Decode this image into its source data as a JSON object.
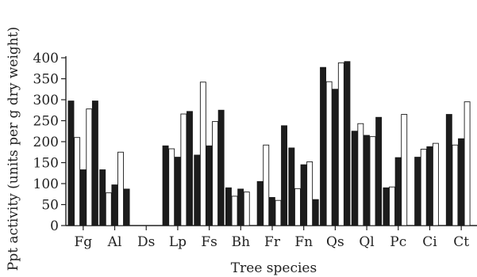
{
  "chart_data": {
    "type": "bar",
    "title": "",
    "xlabel": "Tree species",
    "ylabel": "Ppt activity (units per g dry weight)",
    "ylim": [
      0,
      400
    ],
    "yticks": [
      0,
      50,
      100,
      150,
      200,
      250,
      300,
      350,
      400
    ],
    "grid": false,
    "legend": "none",
    "categories": [
      "Fg",
      "Al",
      "Ds",
      "Lp",
      "Fs",
      "Bh",
      "Fr",
      "Fn",
      "Qs",
      "Ql",
      "Pc",
      "Ci",
      "Ct"
    ],
    "bar_fills": [
      "#1c1c1c",
      "#ffffff"
    ],
    "bars": [
      [
        297,
        210,
        133,
        278,
        297
      ],
      [
        133,
        78,
        97,
        175,
        87
      ],
      [
        0,
        0,
        0,
        0,
        0
      ],
      [
        190,
        183,
        163,
        266,
        272
      ],
      [
        168,
        342,
        190,
        248,
        275
      ],
      [
        90,
        70,
        87,
        80
      ],
      [
        105,
        192,
        67,
        60,
        238
      ],
      [
        185,
        88,
        145,
        152,
        62
      ],
      [
        377,
        343,
        325,
        388,
        391
      ],
      [
        225,
        243,
        215,
        212,
        258
      ],
      [
        90,
        92,
        162,
        265
      ],
      [
        163,
        182,
        188,
        196
      ],
      [
        265,
        192,
        207,
        295
      ]
    ]
  }
}
